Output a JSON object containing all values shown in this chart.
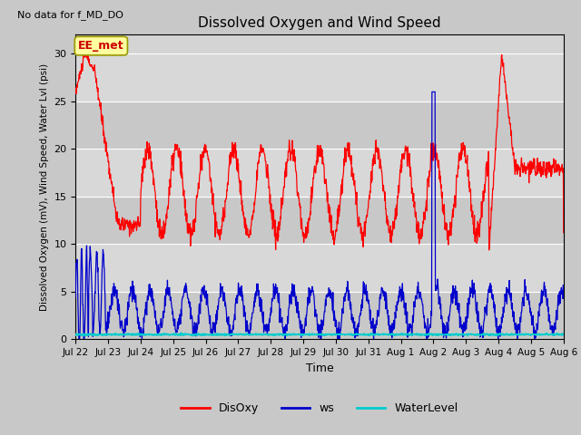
{
  "title": "Dissolved Oxygen and Wind Speed",
  "xlabel": "Time",
  "ylabel": "Dissolved Oxygen (mV), Wind Speed, Water Lvl (psi)",
  "top_left_text": "No data for f_MD_DO",
  "annotation_label": "EE_met",
  "ylim": [
    0,
    32
  ],
  "yticks": [
    0,
    5,
    10,
    15,
    20,
    25,
    30
  ],
  "fig_bg_color": "#c8c8c8",
  "plot_bg_color": "#d4d4d4",
  "line_colors": {
    "DisOxy": "#ff0000",
    "ws": "#0000cc",
    "WaterLevel": "#00cccc"
  },
  "tick_labels": [
    "Jul 22",
    "Jul 23",
    "Jul 24",
    "Jul 25",
    "Jul 26",
    "Jul 27",
    "Jul 28",
    "Jul 29",
    "Jul 30",
    "Jul 31",
    "Aug 1",
    "Aug 2",
    "Aug 3",
    "Aug 4",
    "Aug 5",
    "Aug 6"
  ],
  "figsize": [
    6.4,
    4.8
  ],
  "dpi": 100
}
